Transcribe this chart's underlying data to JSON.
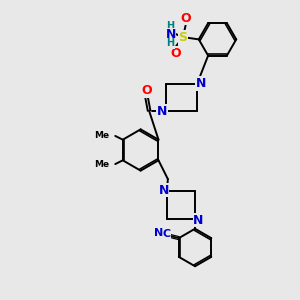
{
  "background_color": "#e8e8e8",
  "bond_color": "#000000",
  "N_color": "#0000cc",
  "O_color": "#ff0000",
  "S_color": "#cccc00",
  "H_color": "#008080",
  "line_width": 1.4,
  "figsize": [
    3.0,
    3.0
  ],
  "dpi": 100,
  "xlim": [
    -1.5,
    1.5
  ],
  "ylim": [
    -1.6,
    1.6
  ]
}
